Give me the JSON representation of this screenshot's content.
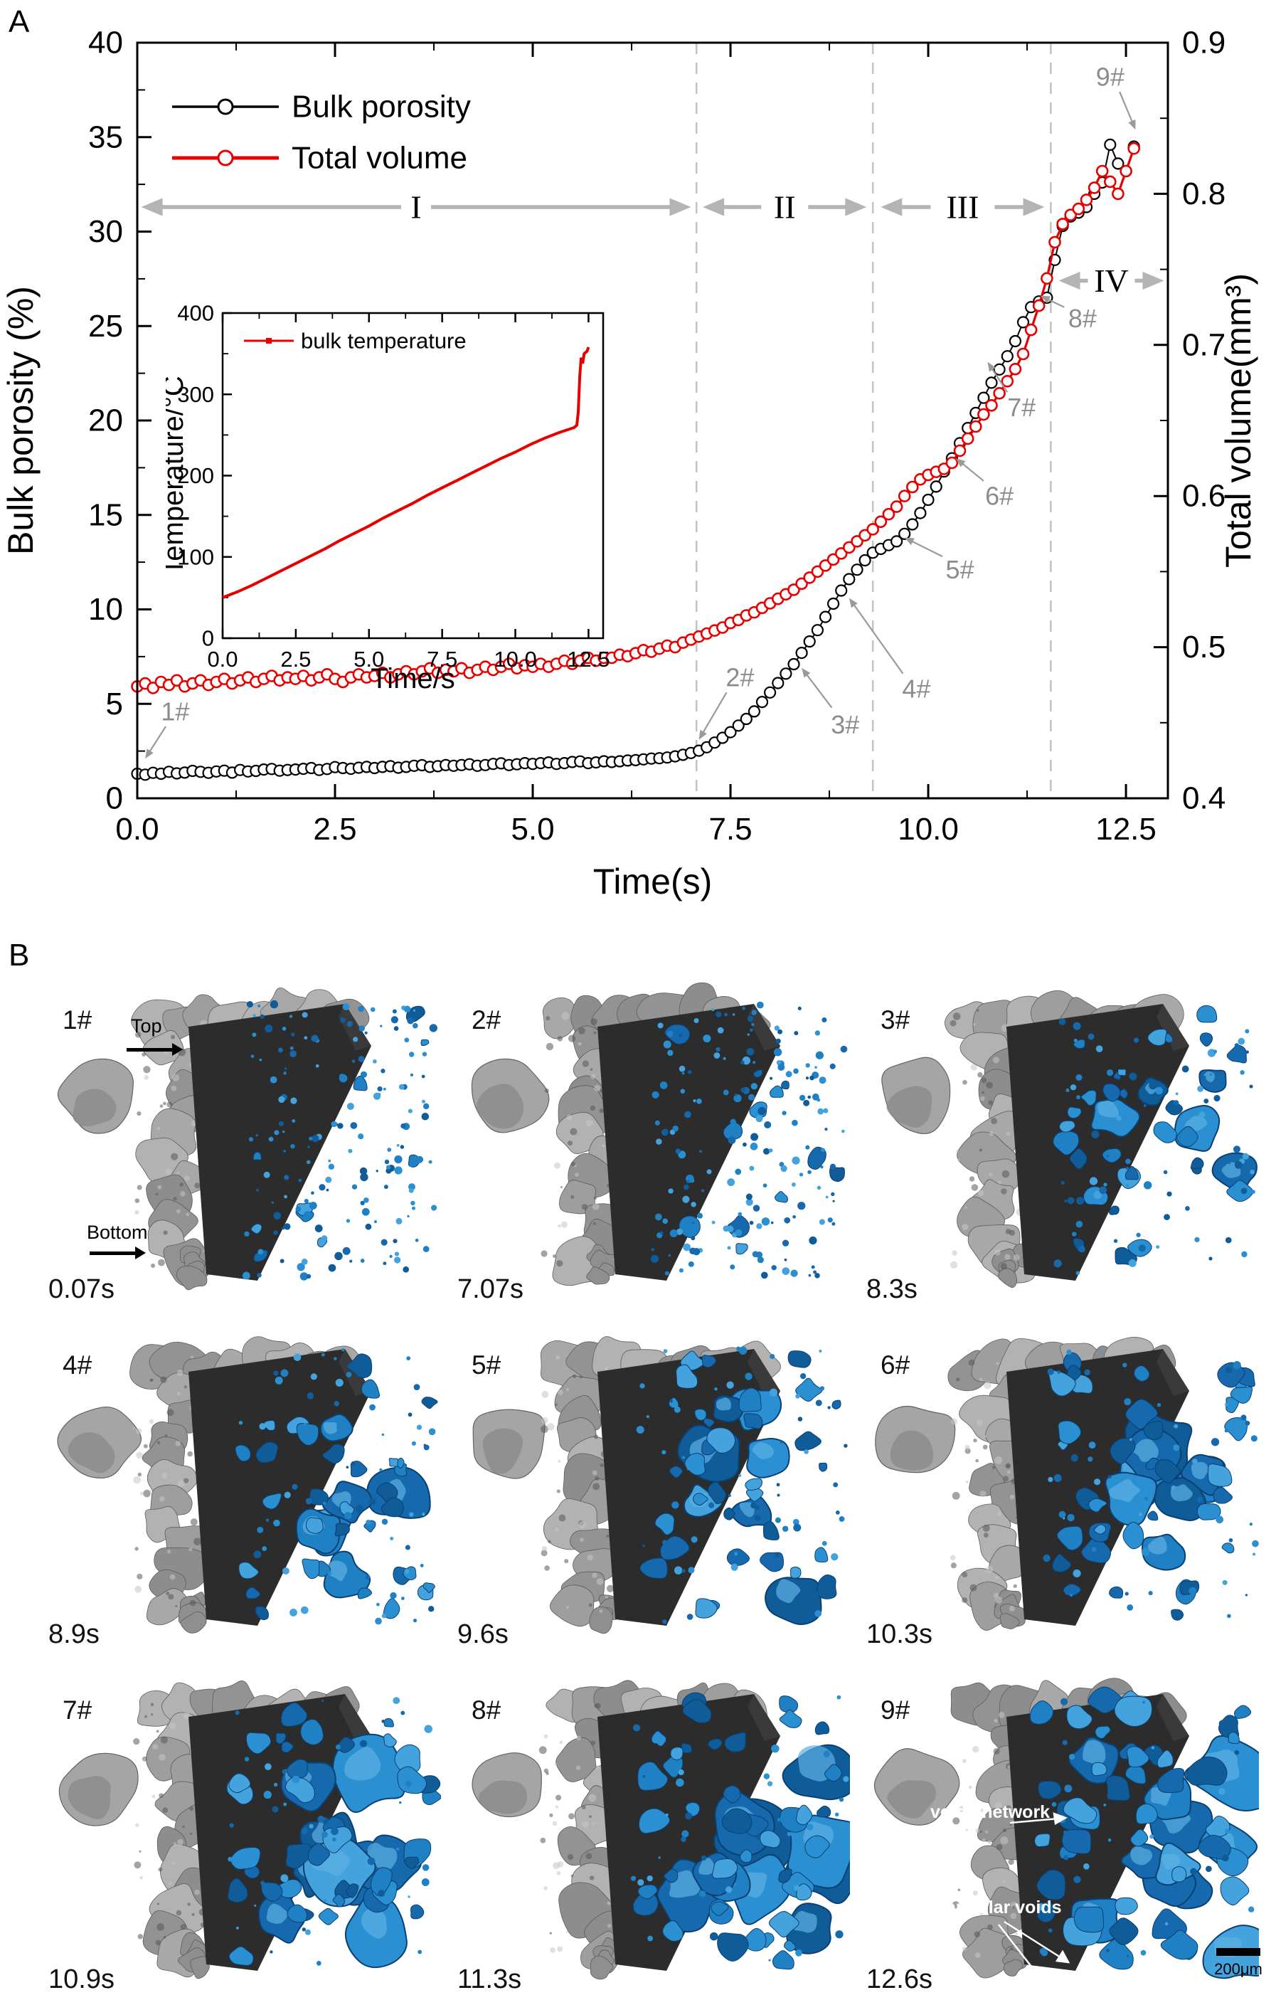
{
  "figure": {
    "panel_a_label": "A",
    "panel_b_label": "B"
  },
  "colors": {
    "porosity_series": "#000000",
    "volume_series": "#e60000",
    "temperature_series": "#e60000",
    "annotation_gray": "#8c8c8c",
    "stage_arrow_gray": "#b4b4b4",
    "dashed_line_gray": "#c2c2c2",
    "void_blue": "#1f81c4",
    "rock_gray": "#9e9e9e"
  },
  "chart_data": [
    {
      "type": "line",
      "title": "",
      "xlabel": "Time(s)",
      "ylabel_left": "Bulk porosity (%)",
      "ylabel_right": "Total volume(mm³)",
      "xlim": [
        0,
        13.03
      ],
      "ylim_left": [
        0,
        40
      ],
      "ylim_right": [
        0.4,
        0.9
      ],
      "xticks": [
        0.0,
        2.5,
        5.0,
        7.5,
        10.0,
        12.5
      ],
      "yticks_left": [
        0,
        5,
        10,
        15,
        20,
        25,
        30,
        35,
        40
      ],
      "yticks_right": [
        0.4,
        0.5,
        0.6,
        0.7,
        0.8,
        0.9
      ],
      "grid": false,
      "legend_position": "top-left-inside",
      "legend": [
        {
          "name": "Bulk porosity",
          "color": "#000000"
        },
        {
          "name": "Total volume",
          "color": "#e60000"
        }
      ],
      "x_start": 0,
      "x_step": 0.1,
      "series": [
        {
          "name": "Bulk porosity",
          "axis": "left",
          "color": "#000000",
          "values": [
            1.3,
            1.25,
            1.35,
            1.3,
            1.4,
            1.32,
            1.36,
            1.45,
            1.4,
            1.35,
            1.42,
            1.46,
            1.36,
            1.5,
            1.42,
            1.45,
            1.52,
            1.55,
            1.46,
            1.5,
            1.52,
            1.56,
            1.6,
            1.5,
            1.55,
            1.65,
            1.6,
            1.56,
            1.62,
            1.66,
            1.6,
            1.66,
            1.7,
            1.62,
            1.66,
            1.72,
            1.75,
            1.66,
            1.7,
            1.76,
            1.72,
            1.76,
            1.8,
            1.72,
            1.76,
            1.82,
            1.85,
            1.76,
            1.8,
            1.86,
            1.82,
            1.86,
            1.9,
            1.82,
            1.86,
            1.92,
            1.95,
            1.86,
            1.9,
            1.96,
            1.92,
            1.96,
            2.0,
            2.02,
            2.06,
            2.1,
            2.12,
            2.16,
            2.22,
            2.3,
            2.4,
            2.52,
            2.7,
            2.95,
            3.2,
            3.5,
            3.85,
            4.2,
            4.6,
            5.1,
            5.6,
            6.1,
            6.6,
            7.1,
            7.7,
            8.3,
            8.9,
            9.6,
            10.3,
            11.0,
            11.6,
            12.1,
            12.6,
            13.0,
            13.2,
            13.4,
            13.6,
            14.0,
            14.5,
            15.1,
            15.8,
            16.5,
            17.3,
            18.0,
            18.8,
            19.6,
            20.4,
            21.2,
            22.0,
            22.7,
            23.4,
            24.2,
            25.2,
            26.0,
            26.3,
            26.5,
            28.5,
            30.3,
            30.8,
            31.0,
            31.3,
            32.0,
            32.6,
            34.6,
            33.6,
            33.2,
            34.5
          ]
        },
        {
          "name": "Total volume",
          "axis": "right",
          "color": "#e60000",
          "values": [
            0.474,
            0.476,
            0.473,
            0.477,
            0.475,
            0.478,
            0.474,
            0.476,
            0.478,
            0.475,
            0.477,
            0.479,
            0.476,
            0.478,
            0.48,
            0.477,
            0.479,
            0.481,
            0.478,
            0.48,
            0.479,
            0.481,
            0.478,
            0.48,
            0.482,
            0.479,
            0.477,
            0.48,
            0.482,
            0.48,
            0.481,
            0.483,
            0.48,
            0.482,
            0.484,
            0.482,
            0.484,
            0.486,
            0.483,
            0.485,
            0.484,
            0.486,
            0.483,
            0.485,
            0.487,
            0.485,
            0.487,
            0.489,
            0.486,
            0.488,
            0.487,
            0.489,
            0.487,
            0.489,
            0.491,
            0.489,
            0.491,
            0.493,
            0.491,
            0.493,
            0.493,
            0.495,
            0.494,
            0.496,
            0.498,
            0.497,
            0.499,
            0.501,
            0.5,
            0.503,
            0.505,
            0.507,
            0.509,
            0.511,
            0.513,
            0.516,
            0.518,
            0.521,
            0.523,
            0.526,
            0.529,
            0.532,
            0.535,
            0.538,
            0.542,
            0.546,
            0.55,
            0.554,
            0.558,
            0.562,
            0.566,
            0.57,
            0.574,
            0.578,
            0.583,
            0.588,
            0.593,
            0.6,
            0.606,
            0.611,
            0.614,
            0.616,
            0.618,
            0.622,
            0.63,
            0.638,
            0.646,
            0.654,
            0.66,
            0.668,
            0.676,
            0.684,
            0.694,
            0.71,
            0.726,
            0.744,
            0.768,
            0.78,
            0.786,
            0.79,
            0.796,
            0.804,
            0.815,
            0.808,
            0.8,
            0.815,
            0.83
          ]
        }
      ],
      "stage_lines": [
        7.07,
        9.3,
        11.55
      ],
      "stages": [
        {
          "label": "I",
          "from": 0.05,
          "to": 7.0,
          "y": 31.3
        },
        {
          "label": "II",
          "from": 7.15,
          "to": 9.22,
          "y": 31.3
        },
        {
          "label": "III",
          "from": 9.4,
          "to": 11.47,
          "y": 31.3
        },
        {
          "label": "IV",
          "from": 11.65,
          "to": 12.98,
          "y": 27.4
        }
      ],
      "annotations": [
        {
          "text": "1#",
          "lx": 0.48,
          "ly": 4.6,
          "ax": 0.36,
          "ay": 3.8,
          "tx": 0.1,
          "ty": 2.1
        },
        {
          "text": "2#",
          "lx": 7.62,
          "ly": 6.4,
          "ax": 7.45,
          "ay": 5.6,
          "tx": 7.1,
          "ty": 3.1
        },
        {
          "text": "3#",
          "lx": 8.95,
          "ly": 3.9,
          "ax": 8.78,
          "ay": 4.8,
          "tx": 8.4,
          "ty": 6.9
        },
        {
          "text": "4#",
          "lx": 9.85,
          "ly": 5.8,
          "ax": 9.68,
          "ay": 6.6,
          "tx": 9.0,
          "ty": 10.6
        },
        {
          "text": "5#",
          "lx": 10.4,
          "ly": 12.1,
          "ax": 10.18,
          "ay": 12.8,
          "tx": 9.7,
          "ty": 13.8
        },
        {
          "text": "6#",
          "lx": 10.9,
          "ly": 16.0,
          "ax": 10.7,
          "ay": 16.8,
          "tx": 10.35,
          "ty": 18.0
        },
        {
          "text": "7#",
          "lx": 11.18,
          "ly": 20.7,
          "ax": 11.0,
          "ay": 21.5,
          "tx": 10.75,
          "ty": 23.1
        },
        {
          "text": "8#",
          "lx": 11.95,
          "ly": 25.4,
          "ax": 11.72,
          "ay": 26.0,
          "tx": 11.42,
          "ty": 26.6
        },
        {
          "text": "9#",
          "lx": 12.3,
          "ly": 38.2,
          "ax": 12.42,
          "ay": 37.4,
          "tx": 12.62,
          "ty": 35.4
        }
      ]
    },
    {
      "type": "line",
      "title": "",
      "xlabel": "Time/s",
      "ylabel": "Temperature/°C",
      "legend": "bulk temperature",
      "color": "#e60000",
      "xlim": [
        0,
        13
      ],
      "ylim": [
        0,
        400
      ],
      "xticks": [
        0.0,
        2.5,
        5.0,
        7.5,
        10.0,
        12.5
      ],
      "yticks": [
        0,
        100,
        200,
        300,
        400
      ],
      "grid": false,
      "points": [
        [
          0,
          50
        ],
        [
          0.5,
          57
        ],
        [
          1,
          65
        ],
        [
          1.5,
          74
        ],
        [
          2,
          83
        ],
        [
          2.5,
          92
        ],
        [
          3,
          101
        ],
        [
          3.5,
          110
        ],
        [
          4,
          120
        ],
        [
          4.5,
          129
        ],
        [
          5,
          138
        ],
        [
          5.5,
          148
        ],
        [
          6,
          157
        ],
        [
          6.5,
          166
        ],
        [
          7,
          176
        ],
        [
          7.5,
          185
        ],
        [
          8,
          194
        ],
        [
          8.5,
          203
        ],
        [
          9,
          212
        ],
        [
          9.5,
          221
        ],
        [
          10,
          229
        ],
        [
          10.5,
          238
        ],
        [
          11,
          246
        ],
        [
          11.5,
          253
        ],
        [
          12,
          259
        ],
        [
          12.1,
          262
        ],
        [
          12.15,
          278
        ],
        [
          12.2,
          322
        ],
        [
          12.25,
          345
        ],
        [
          12.3,
          338
        ],
        [
          12.35,
          350
        ],
        [
          12.45,
          353
        ],
        [
          12.5,
          358
        ]
      ]
    }
  ],
  "panel_b": {
    "top_label": "Top",
    "bottom_label": "Bottom",
    "scalebar_label": "200μm",
    "annotations": {
      "voids_network": "voids network",
      "annular_voids": "annular voids"
    },
    "tiles": [
      {
        "id": "1#",
        "time": "0.07s",
        "level": 1
      },
      {
        "id": "2#",
        "time": "7.07s",
        "level": 2
      },
      {
        "id": "3#",
        "time": "8.3s",
        "level": 3
      },
      {
        "id": "4#",
        "time": "8.9s",
        "level": 4
      },
      {
        "id": "5#",
        "time": "9.6s",
        "level": 5
      },
      {
        "id": "6#",
        "time": "10.3s",
        "level": 6
      },
      {
        "id": "7#",
        "time": "10.9s",
        "level": 7
      },
      {
        "id": "8#",
        "time": "11.3s",
        "level": 8
      },
      {
        "id": "9#",
        "time": "12.6s",
        "level": 9
      }
    ]
  }
}
